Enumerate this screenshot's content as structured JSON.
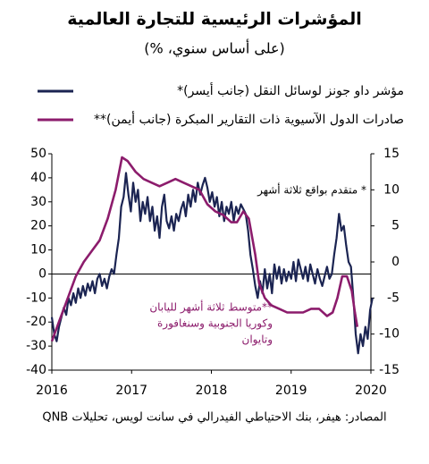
{
  "chart_data": {
    "type": "line",
    "title": "المؤشرات الرئيسية للتجارة العالمية",
    "subtitle": "(على أساس سنوي، %)",
    "xlim": [
      2016,
      2020
    ],
    "xticks": [
      2016,
      2017,
      2018,
      2019,
      2020
    ],
    "ylim": [
      -40,
      50
    ],
    "yticks": [
      50,
      40,
      30,
      20,
      10,
      0,
      -10,
      -20,
      -30,
      -40
    ],
    "y2lim": [
      -15,
      15
    ],
    "y2ticks": [
      15,
      10,
      5,
      0,
      -5,
      -10,
      -15
    ],
    "series": [
      {
        "name": "مؤشر داو جونز لوسائل النقل (جانب أيسر)*",
        "color": "#1b2452",
        "x": [
          2016.0,
          2016.03,
          2016.06,
          2016.09,
          2016.12,
          2016.15,
          2016.18,
          2016.21,
          2016.24,
          2016.27,
          2016.3,
          2016.33,
          2016.36,
          2016.39,
          2016.42,
          2016.45,
          2016.48,
          2016.51,
          2016.54,
          2016.57,
          2016.6,
          2016.63,
          2016.66,
          2016.69,
          2016.72,
          2016.75,
          2016.78,
          2016.81,
          2016.84,
          2016.87,
          2016.9,
          2016.93,
          2016.96,
          2016.99,
          2017.02,
          2017.05,
          2017.08,
          2017.11,
          2017.14,
          2017.17,
          2017.2,
          2017.23,
          2017.26,
          2017.29,
          2017.32,
          2017.35,
          2017.38,
          2017.41,
          2017.44,
          2017.47,
          2017.5,
          2017.53,
          2017.56,
          2017.59,
          2017.62,
          2017.65,
          2017.68,
          2017.71,
          2017.74,
          2017.77,
          2017.8,
          2017.83,
          2017.86,
          2017.89,
          2017.92,
          2017.95,
          2017.98,
          2018.01,
          2018.04,
          2018.07,
          2018.1,
          2018.13,
          2018.16,
          2018.19,
          2018.22,
          2018.25,
          2018.28,
          2018.31,
          2018.34,
          2018.37,
          2018.4,
          2018.43,
          2018.46,
          2018.49,
          2018.52,
          2018.55,
          2018.58,
          2018.61,
          2018.64,
          2018.67,
          2018.7,
          2018.73,
          2018.76,
          2018.79,
          2018.82,
          2018.85,
          2018.88,
          2018.91,
          2018.94,
          2018.97,
          2019.0,
          2019.03,
          2019.06,
          2019.09,
          2019.12,
          2019.15,
          2019.18,
          2019.21,
          2019.24,
          2019.27,
          2019.3,
          2019.33,
          2019.36,
          2019.39,
          2019.42,
          2019.45,
          2019.48,
          2019.51,
          2019.54,
          2019.57,
          2019.6,
          2019.63,
          2019.66,
          2019.69,
          2019.72,
          2019.75,
          2019.78,
          2019.81,
          2019.84,
          2019.87,
          2019.9,
          2019.93,
          2019.96,
          2019.99,
          2020.02
        ],
        "values": [
          -18,
          -25,
          -28,
          -22,
          -18,
          -14,
          -17,
          -10,
          -13,
          -8,
          -12,
          -6,
          -10,
          -5,
          -9,
          -4,
          -7,
          -3,
          -8,
          -2,
          0,
          -5,
          -2,
          -6,
          -1,
          2,
          0,
          8,
          15,
          28,
          32,
          42,
          33,
          26,
          38,
          30,
          35,
          22,
          30,
          25,
          32,
          22,
          28,
          18,
          24,
          15,
          28,
          33,
          22,
          19,
          24,
          18,
          25,
          22,
          27,
          30,
          24,
          33,
          28,
          35,
          30,
          38,
          33,
          37,
          40,
          36,
          30,
          34,
          28,
          32,
          24,
          30,
          22,
          28,
          25,
          30,
          22,
          28,
          25,
          29,
          27,
          25,
          18,
          8,
          2,
          -5,
          -10,
          -3,
          -8,
          2,
          -6,
          0,
          -8,
          4,
          -2,
          3,
          -4,
          2,
          -3,
          1,
          -2,
          5,
          -3,
          6,
          2,
          -2,
          3,
          -3,
          4,
          0,
          -4,
          2,
          -2,
          -5,
          -1,
          3,
          -2,
          0,
          8,
          15,
          25,
          18,
          20,
          12,
          5,
          3,
          -10,
          -25,
          -33,
          -25,
          -30,
          -22,
          -27,
          -15,
          -10
        ]
      },
      {
        "name": "صادرات الدول الآسيوية ذات التقارير المبكرة (جانب أيمن)**",
        "color": "#8c1c6c",
        "axis": "y2",
        "x": [
          2016.0,
          2016.1,
          2016.2,
          2016.3,
          2016.4,
          2016.5,
          2016.6,
          2016.7,
          2016.8,
          2016.88,
          2016.95,
          2017.05,
          2017.15,
          2017.25,
          2017.35,
          2017.45,
          2017.55,
          2017.65,
          2017.75,
          2017.85,
          2017.95,
          2018.05,
          2018.15,
          2018.25,
          2018.32,
          2018.4,
          2018.47,
          2018.55,
          2018.6,
          2018.67,
          2018.75,
          2018.85,
          2018.95,
          2019.05,
          2019.15,
          2019.25,
          2019.35,
          2019.45,
          2019.52,
          2019.58,
          2019.64,
          2019.7,
          2019.76,
          2019.8,
          2019.83
        ],
        "values": [
          -11,
          -8,
          -5,
          -2,
          0,
          1.5,
          3,
          6,
          10,
          14.5,
          14,
          12.5,
          11.5,
          11,
          10.5,
          11,
          11.5,
          11,
          10.5,
          10,
          8,
          7,
          6.5,
          5.5,
          5.5,
          7,
          6,
          1,
          -3,
          -5,
          -6,
          -6.5,
          -7,
          -7,
          -7,
          -6.5,
          -6.5,
          -7.5,
          -7,
          -5,
          -2,
          -2,
          -4,
          -7,
          -9
        ]
      }
    ],
    "annotations": [
      "* متقدم بواقع ثلاثة أشهر",
      [
        "**متوسط ثلاثة أشهر لليابان",
        "وكوريا الجنوبية وسنغافورة",
        "وتايوان"
      ]
    ],
    "source": "المصادر: هيفر، بنك الاحتياطي الفيدرالي في سانت لويس، تحليلات QNB"
  }
}
